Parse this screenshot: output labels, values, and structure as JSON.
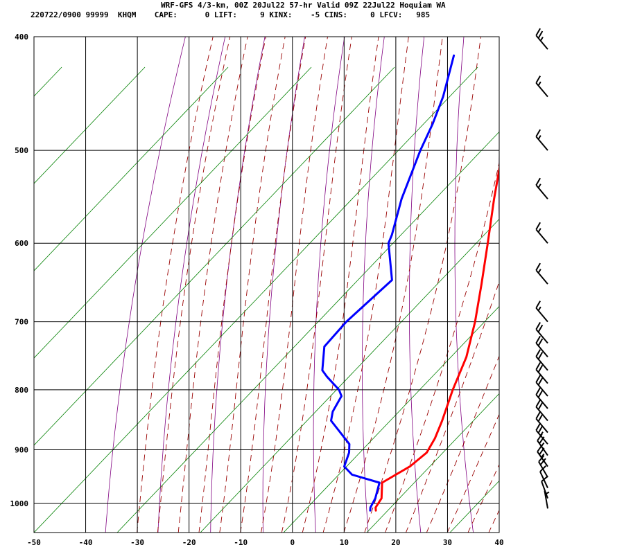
{
  "header": {
    "title": "WRF-GFS 4/3-km, 00Z 20Jul22 57-hr Valid 09Z 22Jul22 Hoquiam WA",
    "stats_line": "220722/0900 99999  KHQM    CAPE:      0 LIFT:     9 KINX:    -5 CINS:     0 LFCV:   985"
  },
  "chart_data": {
    "type": "line",
    "title": "WRF-GFS 4/3-km, 00Z 20Jul22 57-hr Valid 09Z 22Jul22 Hoquiam WA",
    "xlabel": "",
    "ylabel": "",
    "chart_kind": "skew-T log-p sounding",
    "x_axis": {
      "range": [
        -50,
        40
      ],
      "ticks": [
        -50,
        -40,
        -30,
        -20,
        -10,
        0,
        10,
        20,
        30,
        40
      ],
      "units": "degC at bottom"
    },
    "y_axis": {
      "range": [
        1050,
        400
      ],
      "scale": "log",
      "ticks": [
        400,
        500,
        600,
        700,
        800,
        900,
        1000
      ],
      "units": "hPa"
    },
    "grid": true,
    "series": [
      {
        "kind": "temperature",
        "color": "#ff0000",
        "points": [
          [
            1014,
            12.9
          ],
          [
            1008,
            12.4
          ],
          [
            990,
            12.2
          ],
          [
            960,
            10.0
          ],
          [
            930,
            13.0
          ],
          [
            905,
            14.2
          ],
          [
            880,
            13.7
          ],
          [
            850,
            12.5
          ],
          [
            800,
            10.0
          ],
          [
            750,
            7.8
          ],
          [
            700,
            4.3
          ],
          [
            650,
            0.0
          ],
          [
            600,
            -4.8
          ],
          [
            550,
            -10.1
          ],
          [
            500,
            -15.6
          ],
          [
            450,
            -21.1
          ],
          [
            415,
            -25.0
          ]
        ]
      },
      {
        "kind": "dewpoint",
        "color": "#0000ff",
        "points": [
          [
            1014,
            11.8
          ],
          [
            1008,
            11.4
          ],
          [
            990,
            11.0
          ],
          [
            960,
            9.5
          ],
          [
            945,
            3.0
          ],
          [
            930,
            0.3
          ],
          [
            905,
            -0.8
          ],
          [
            890,
            -2.0
          ],
          [
            850,
            -9.0
          ],
          [
            835,
            -10.0
          ],
          [
            810,
            -10.6
          ],
          [
            800,
            -12.0
          ],
          [
            780,
            -16.2
          ],
          [
            770,
            -18.1
          ],
          [
            735,
            -21.2
          ],
          [
            700,
            -20.6
          ],
          [
            645,
            -17.9
          ],
          [
            600,
            -24.0
          ],
          [
            590,
            -24.6
          ],
          [
            550,
            -28.0
          ],
          [
            500,
            -31.5
          ],
          [
            475,
            -33.0
          ],
          [
            450,
            -35.0
          ],
          [
            415,
            -39.0
          ]
        ]
      }
    ],
    "background_lines": {
      "dry_adiabat_color": "#800080",
      "moist_adiabat_color": "#990000",
      "mixing_ratio_color": "#008000"
    },
    "wind_barbs": [
      {
        "p": 1010,
        "dir": 350,
        "spd": 5
      },
      {
        "p": 990,
        "dir": 340,
        "spd": 10
      },
      {
        "p": 970,
        "dir": 335,
        "spd": 10
      },
      {
        "p": 950,
        "dir": 330,
        "spd": 20
      },
      {
        "p": 930,
        "dir": 325,
        "spd": 25
      },
      {
        "p": 910,
        "dir": 325,
        "spd": 25
      },
      {
        "p": 890,
        "dir": 320,
        "spd": 25
      },
      {
        "p": 870,
        "dir": 320,
        "spd": 20
      },
      {
        "p": 850,
        "dir": 320,
        "spd": 20
      },
      {
        "p": 830,
        "dir": 320,
        "spd": 20
      },
      {
        "p": 810,
        "dir": 320,
        "spd": 20
      },
      {
        "p": 790,
        "dir": 320,
        "spd": 20
      },
      {
        "p": 770,
        "dir": 320,
        "spd": 20
      },
      {
        "p": 750,
        "dir": 320,
        "spd": 20
      },
      {
        "p": 730,
        "dir": 320,
        "spd": 20
      },
      {
        "p": 700,
        "dir": 320,
        "spd": 15
      },
      {
        "p": 650,
        "dir": 320,
        "spd": 15
      },
      {
        "p": 600,
        "dir": 320,
        "spd": 15
      },
      {
        "p": 550,
        "dir": 320,
        "spd": 15
      },
      {
        "p": 500,
        "dir": 320,
        "spd": 15
      },
      {
        "p": 450,
        "dir": 320,
        "spd": 15
      },
      {
        "p": 410,
        "dir": 320,
        "spd": 25
      }
    ]
  }
}
